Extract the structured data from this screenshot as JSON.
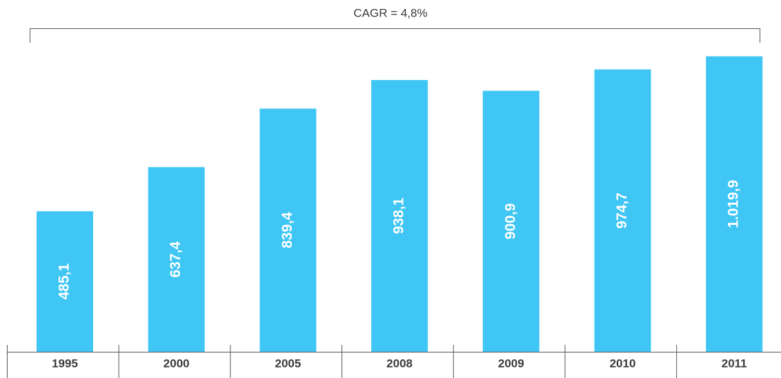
{
  "chart_data": {
    "type": "bar",
    "annotation": "CAGR = 4,8%",
    "categories": [
      "1995",
      "2000",
      "2005",
      "2008",
      "2009",
      "2010",
      "2011"
    ],
    "values": [
      485.1,
      637.4,
      839.4,
      938.1,
      900.9,
      974.7,
      1019.9
    ],
    "value_labels": [
      "485,1",
      "637,4",
      "839,4",
      "938,1",
      "900,9",
      "974,7",
      "1.019,9"
    ],
    "color": "#40c6f4"
  }
}
